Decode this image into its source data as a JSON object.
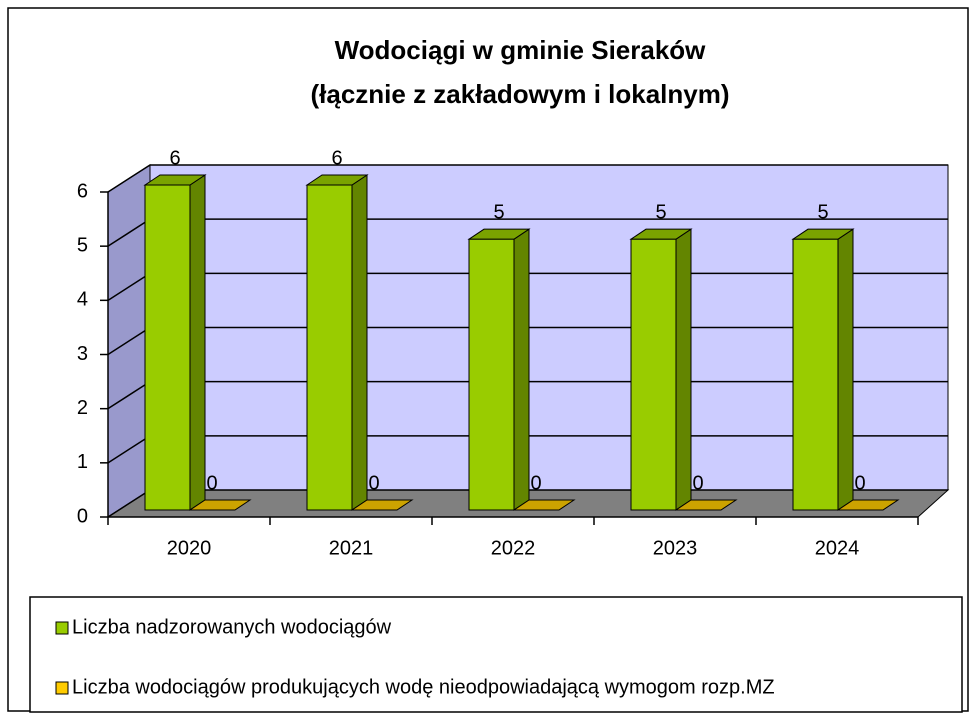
{
  "chart_data": {
    "type": "bar3d",
    "title": "Wodociągi w gminie Sieraków",
    "subtitle": "(łącznie z zakładowym i lokalnym)",
    "categories": [
      "2020",
      "2021",
      "2022",
      "2023",
      "2024"
    ],
    "series": [
      {
        "name": "Liczba nadzorowanych wodociągów",
        "color": "#99cc00",
        "values": [
          6,
          6,
          5,
          5,
          5
        ]
      },
      {
        "name": "Liczba wodociągów produkujących wodę nieodpowiadającą wymogom rozp.MZ",
        "color": "#ffcc00",
        "values": [
          0,
          0,
          0,
          0,
          0
        ]
      }
    ],
    "ylim": [
      0,
      6
    ],
    "yticks": [
      0,
      1,
      2,
      3,
      4,
      5,
      6
    ],
    "grid": true,
    "legend": "bottom"
  }
}
